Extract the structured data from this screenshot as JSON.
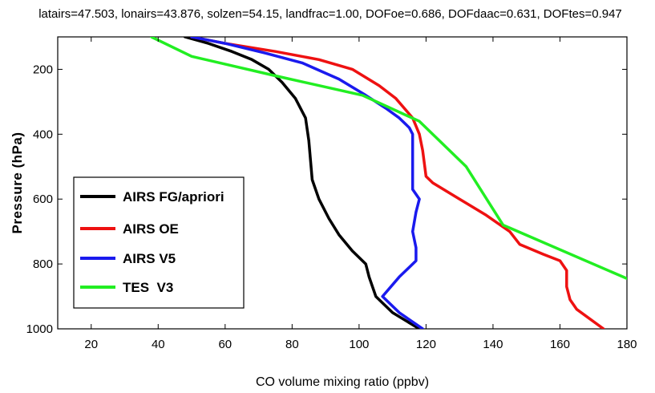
{
  "chart_data": {
    "type": "line",
    "title": "latairs=47.503,  lonairs=43.876, solzen=54.15, landfrac=1.00, DOFoe=0.686,  DOFdaac=0.631, DOFtes=0.947",
    "xlabel": "CO volume mixing ratio (ppbv)",
    "ylabel": "Pressure (hPa)",
    "xlim": [
      10,
      180
    ],
    "ylim": [
      100,
      1000
    ],
    "y_reversed": true,
    "x_ticks": [
      20,
      40,
      60,
      80,
      100,
      120,
      140,
      160,
      180
    ],
    "y_ticks": [
      200,
      400,
      600,
      800,
      1000
    ],
    "grid": false,
    "legend_position": "lower-left",
    "series": [
      {
        "name": "AIRS FG/apriori",
        "color": "#000000",
        "points": [
          [
            48,
            100
          ],
          [
            55,
            120
          ],
          [
            62,
            145
          ],
          [
            68,
            170
          ],
          [
            73,
            200
          ],
          [
            77,
            240
          ],
          [
            81,
            290
          ],
          [
            84,
            350
          ],
          [
            85,
            420
          ],
          [
            85.5,
            480
          ],
          [
            86,
            540
          ],
          [
            88,
            600
          ],
          [
            91,
            660
          ],
          [
            94,
            710
          ],
          [
            98,
            760
          ],
          [
            102,
            800
          ],
          [
            103,
            840
          ],
          [
            105,
            900
          ],
          [
            110,
            950
          ],
          [
            118,
            1000
          ]
        ]
      },
      {
        "name": "AIRS OE",
        "color": "#ee1111",
        "points": [
          [
            50,
            100
          ],
          [
            60,
            120
          ],
          [
            75,
            145
          ],
          [
            88,
            170
          ],
          [
            98,
            200
          ],
          [
            106,
            250
          ],
          [
            111,
            290
          ],
          [
            116,
            350
          ],
          [
            118,
            400
          ],
          [
            119,
            450
          ],
          [
            120,
            530
          ],
          [
            122,
            550
          ],
          [
            130,
            600
          ],
          [
            138,
            650
          ],
          [
            145,
            700
          ],
          [
            148,
            740
          ],
          [
            155,
            770
          ],
          [
            160,
            790
          ],
          [
            162,
            820
          ],
          [
            162,
            870
          ],
          [
            163,
            910
          ],
          [
            165,
            940
          ],
          [
            173,
            1000
          ]
        ]
      },
      {
        "name": "AIRS V5",
        "color": "#1a1aee",
        "points": [
          [
            50,
            100
          ],
          [
            60,
            120
          ],
          [
            72,
            150
          ],
          [
            83,
            180
          ],
          [
            94,
            230
          ],
          [
            102,
            280
          ],
          [
            108,
            320
          ],
          [
            112,
            350
          ],
          [
            115,
            380
          ],
          [
            116,
            400
          ],
          [
            116,
            450
          ],
          [
            116,
            520
          ],
          [
            116,
            570
          ],
          [
            118,
            600
          ],
          [
            117,
            640
          ],
          [
            116,
            700
          ],
          [
            117,
            750
          ],
          [
            117,
            790
          ],
          [
            112,
            840
          ],
          [
            107,
            900
          ],
          [
            112,
            950
          ],
          [
            119,
            1000
          ]
        ]
      },
      {
        "name": "TES  V3",
        "color": "#22ee22",
        "points": [
          [
            38,
            100
          ],
          [
            50,
            160
          ],
          [
            75,
            220
          ],
          [
            101,
            280
          ],
          [
            118,
            360
          ],
          [
            132,
            500
          ],
          [
            143,
            680
          ],
          [
            180,
            845
          ]
        ]
      }
    ]
  }
}
